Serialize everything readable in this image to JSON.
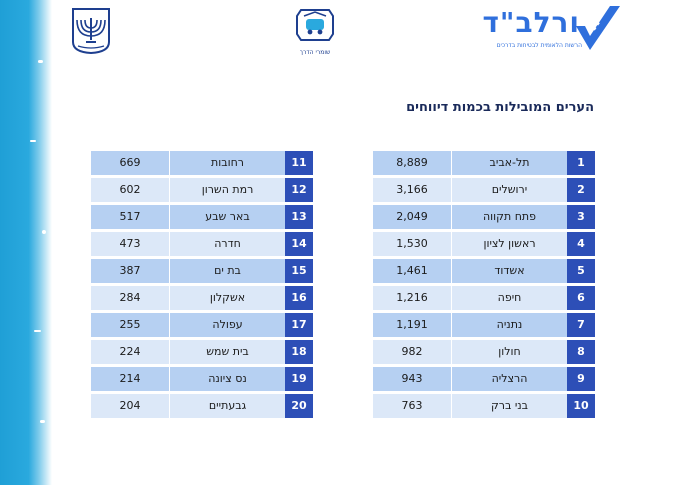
{
  "title": "הערים המובילות בכמות דיווחים",
  "brand": {
    "name": "ורלב\"ד",
    "tagline": "הרשות הלאומית לבטיחות בדרכים"
  },
  "middle_logo": {
    "label": "שומרי הדרך"
  },
  "icons": {
    "emblem": "menorah-emblem-icon",
    "middle": "road-guardians-logo-icon",
    "brand_check": "checkmark-road-icon"
  },
  "colors": {
    "rank_bg": "#2d4fb7",
    "row_dark": "#b6d0f2",
    "row_light": "#dce8f8",
    "brush": "#2aa9de",
    "brand_blue": "#2f6fdc"
  },
  "table_right": [
    {
      "rank": "1",
      "city": "תל-אביב",
      "value": "8,889"
    },
    {
      "rank": "2",
      "city": "ירושלים",
      "value": "3,166"
    },
    {
      "rank": "3",
      "city": "פתח תקווה",
      "value": "2,049"
    },
    {
      "rank": "4",
      "city": "ראשון לציון",
      "value": "1,530"
    },
    {
      "rank": "5",
      "city": "אשדוד",
      "value": "1,461"
    },
    {
      "rank": "6",
      "city": "חיפה",
      "value": "1,216"
    },
    {
      "rank": "7",
      "city": "נתניה",
      "value": "1,191"
    },
    {
      "rank": "8",
      "city": "חולון",
      "value": "982"
    },
    {
      "rank": "9",
      "city": "הרצליה",
      "value": "943"
    },
    {
      "rank": "10",
      "city": "בני ברק",
      "value": "763"
    }
  ],
  "table_left": [
    {
      "rank": "11",
      "city": "רחובות",
      "value": "669"
    },
    {
      "rank": "12",
      "city": "רמת השרון",
      "value": "602"
    },
    {
      "rank": "13",
      "city": "באר שבע",
      "value": "517"
    },
    {
      "rank": "14",
      "city": "חדרה",
      "value": "473"
    },
    {
      "rank": "15",
      "city": "בת ים",
      "value": "387"
    },
    {
      "rank": "16",
      "city": "אשקלון",
      "value": "284"
    },
    {
      "rank": "17",
      "city": "עפולה",
      "value": "255"
    },
    {
      "rank": "18",
      "city": "בית שמש",
      "value": "224"
    },
    {
      "rank": "19",
      "city": "נס ציונה",
      "value": "214"
    },
    {
      "rank": "20",
      "city": "גבעתיים",
      "value": "204"
    }
  ]
}
